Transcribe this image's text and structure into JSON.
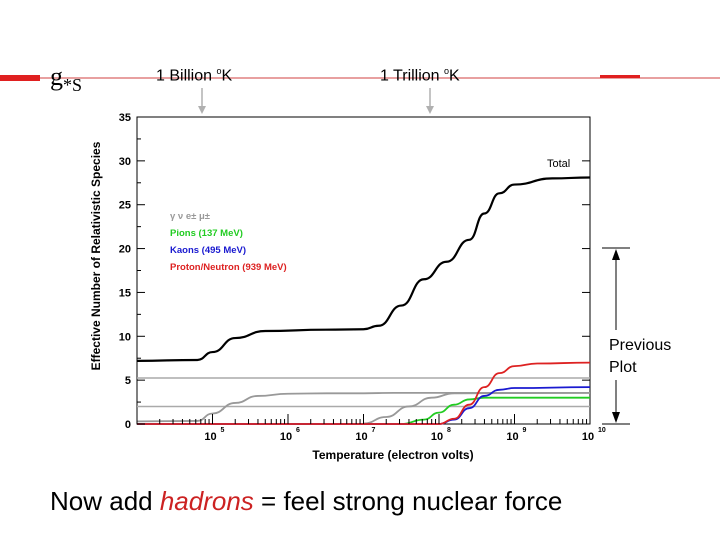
{
  "slide": {
    "symbol_main": "g",
    "symbol_sub": "*S",
    "marker_1_value": "1 Billion",
    "marker_1_unit": "K",
    "marker_2_value": "1 Trillion",
    "marker_2_unit": "K",
    "degree_symbol": "o",
    "bracket_label_line1": "Previous",
    "bracket_label_line2": "Plot",
    "caption_before": "Now add ",
    "caption_highlight": "hadrons",
    "caption_after": " = feel strong nuclear force"
  },
  "chart_data": {
    "type": "line",
    "title": "",
    "xlabel": "Temperature (electron volts)",
    "ylabel": "Effective Number of Relativistic Species",
    "xscale": "log",
    "xlim_log10": [
      4,
      10
    ],
    "ylim": [
      0,
      35
    ],
    "y_ticks": [
      "0",
      "5",
      "10",
      "15",
      "20",
      "25",
      "30",
      "35"
    ],
    "x_ticks": [
      {
        "base": "10",
        "exp": "5",
        "log": 5
      },
      {
        "base": "10",
        "exp": "6",
        "log": 6
      },
      {
        "base": "10",
        "exp": "7",
        "log": 7
      },
      {
        "base": "10",
        "exp": "8",
        "log": 8
      },
      {
        "base": "10",
        "exp": "9",
        "log": 9
      },
      {
        "base": "10",
        "exp": "10",
        "log": 10
      }
    ],
    "legend": [
      {
        "label": "γ ν e± μ±",
        "color": "#999999"
      },
      {
        "label": "Pions (137 MeV)",
        "color": "#22cc22"
      },
      {
        "label": "Kaons (495 MeV)",
        "color": "#1a1ad0"
      },
      {
        "label": "Proton/Neutron (939 MeV)",
        "color": "#dd2222"
      }
    ],
    "total_label": "Total",
    "reference_levels": [
      5.25,
      2.0
    ],
    "series": [
      {
        "name": "Total",
        "color": "#000000",
        "points": [
          [
            4,
            7.2
          ],
          [
            4.8,
            7.3
          ],
          [
            5.0,
            8.2
          ],
          [
            5.3,
            9.8
          ],
          [
            5.7,
            10.6
          ],
          [
            6.5,
            10.75
          ],
          [
            7.0,
            10.8
          ],
          [
            7.2,
            11.2
          ],
          [
            7.5,
            13.5
          ],
          [
            7.8,
            16.5
          ],
          [
            8.1,
            18.5
          ],
          [
            8.4,
            21.0
          ],
          [
            8.6,
            24.0
          ],
          [
            8.8,
            26.3
          ],
          [
            9.0,
            27.3
          ],
          [
            9.5,
            28.0
          ],
          [
            10,
            28.1
          ]
        ]
      },
      {
        "name": "γ ν e± μ±",
        "color": "#999999",
        "points": [
          [
            4,
            0.3
          ],
          [
            4.8,
            0.35
          ],
          [
            5.0,
            1.2
          ],
          [
            5.3,
            2.4
          ],
          [
            5.6,
            3.2
          ],
          [
            6.0,
            3.45
          ],
          [
            6.5,
            3.5
          ],
          [
            7.0,
            3.5
          ],
          [
            7.4,
            3.55
          ],
          [
            7.8,
            3.55
          ],
          [
            10,
            3.55
          ]
        ]
      },
      {
        "name": "γ ν e± μ± (upper)",
        "color": "#999999",
        "points": [
          [
            7.0,
            0.05
          ],
          [
            7.3,
            0.8
          ],
          [
            7.6,
            2.0
          ],
          [
            7.9,
            3.0
          ],
          [
            8.2,
            3.5
          ],
          [
            10,
            3.55
          ]
        ]
      },
      {
        "name": "Pions (137 MeV)",
        "color": "#22cc22",
        "points": [
          [
            4,
            0
          ],
          [
            7.5,
            0.0
          ],
          [
            7.8,
            0.5
          ],
          [
            8.0,
            1.3
          ],
          [
            8.2,
            2.2
          ],
          [
            8.4,
            2.8
          ],
          [
            8.6,
            3.0
          ],
          [
            10,
            3.0
          ]
        ]
      },
      {
        "name": "Kaons (495 MeV)",
        "color": "#1a1ad0",
        "points": [
          [
            4,
            0
          ],
          [
            8.0,
            0.0
          ],
          [
            8.2,
            0.5
          ],
          [
            8.4,
            1.8
          ],
          [
            8.6,
            3.2
          ],
          [
            8.8,
            3.9
          ],
          [
            9.0,
            4.1
          ],
          [
            10,
            4.2
          ]
        ]
      },
      {
        "name": "Proton/Neutron (939 MeV)",
        "color": "#dd2222",
        "points": [
          [
            4,
            0
          ],
          [
            8.0,
            0.0
          ],
          [
            8.2,
            0.6
          ],
          [
            8.4,
            2.2
          ],
          [
            8.6,
            4.2
          ],
          [
            8.8,
            5.8
          ],
          [
            9.0,
            6.6
          ],
          [
            9.3,
            6.9
          ],
          [
            10,
            7.0
          ]
        ]
      }
    ]
  }
}
